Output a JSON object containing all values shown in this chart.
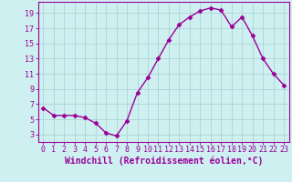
{
  "x": [
    0,
    1,
    2,
    3,
    4,
    5,
    6,
    7,
    8,
    9,
    10,
    11,
    12,
    13,
    14,
    15,
    16,
    17,
    18,
    19,
    20,
    21,
    22,
    23
  ],
  "y": [
    6.5,
    5.5,
    5.5,
    5.5,
    5.2,
    4.5,
    3.2,
    2.8,
    4.8,
    8.5,
    10.5,
    13.0,
    15.5,
    17.5,
    18.5,
    19.3,
    19.7,
    19.4,
    17.2,
    18.5,
    16.0,
    13.0,
    11.0,
    9.5
  ],
  "line_color": "#990099",
  "marker": "D",
  "marker_size": 2.5,
  "background_color": "#cff0f0",
  "grid_color": "#b0d8d8",
  "xlabel": "Windchill (Refroidissement éolien,°C)",
  "xlabel_fontsize": 7,
  "tick_fontsize": 6,
  "ylim": [
    2,
    20.5
  ],
  "yticks": [
    3,
    5,
    7,
    9,
    11,
    13,
    15,
    17,
    19
  ],
  "xticks": [
    0,
    1,
    2,
    3,
    4,
    5,
    6,
    7,
    8,
    9,
    10,
    11,
    12,
    13,
    14,
    15,
    16,
    17,
    18,
    19,
    20,
    21,
    22,
    23
  ],
  "linewidth": 1.0
}
